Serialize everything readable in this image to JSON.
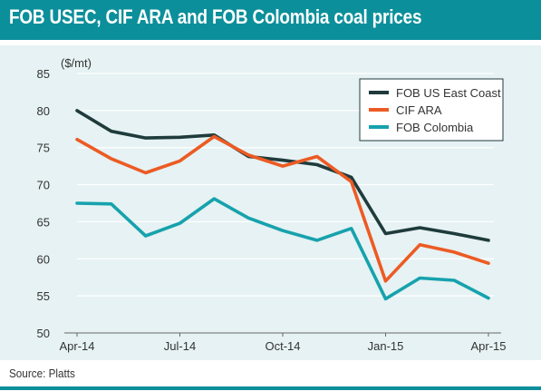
{
  "title": "FOB USEC, CIF ARA and FOB Colombia coal prices",
  "source": "Source: Platts",
  "colors": {
    "title_bg": "#0b8f9b",
    "panel_bg": "#e6f2f3",
    "fob_us": "#1f3b3c",
    "cif_ara": "#ec5b24",
    "fob_colombia": "#16a2ad"
  },
  "chart_data": {
    "type": "line",
    "ylabel": "($/mt)",
    "xlabel": "",
    "ylim": [
      50,
      85
    ],
    "yticks": [
      50,
      55,
      60,
      65,
      70,
      75,
      80,
      85
    ],
    "x_tick_labels": [
      "Apr-14",
      "Jul-14",
      "Oct-14",
      "Jan-15",
      "Apr-15"
    ],
    "x": [
      "Apr-14",
      "May-14",
      "Jun-14",
      "Jul-14",
      "Aug-14",
      "Sep-14",
      "Oct-14",
      "Nov-14",
      "Dec-14",
      "Jan-15",
      "Feb-15",
      "Mar-15",
      "Apr-15"
    ],
    "grid": true,
    "legend_position": "top-right",
    "series": [
      {
        "name": "FOB US East Coast",
        "color": "#1f3b3c",
        "values": [
          80.0,
          77.2,
          76.3,
          76.4,
          76.7,
          73.8,
          73.3,
          72.7,
          71.0,
          63.4,
          64.2,
          63.4,
          62.5
        ]
      },
      {
        "name": "CIF ARA",
        "color": "#ec5b24",
        "values": [
          76.1,
          73.5,
          71.6,
          73.2,
          76.5,
          74.0,
          72.5,
          73.8,
          70.4,
          57.0,
          61.9,
          60.9,
          59.4
        ]
      },
      {
        "name": "FOB Colombia",
        "color": "#16a2ad",
        "values": [
          67.5,
          67.4,
          63.1,
          64.8,
          68.1,
          65.5,
          63.8,
          62.5,
          64.1,
          54.6,
          57.4,
          57.1,
          54.7
        ]
      }
    ]
  }
}
